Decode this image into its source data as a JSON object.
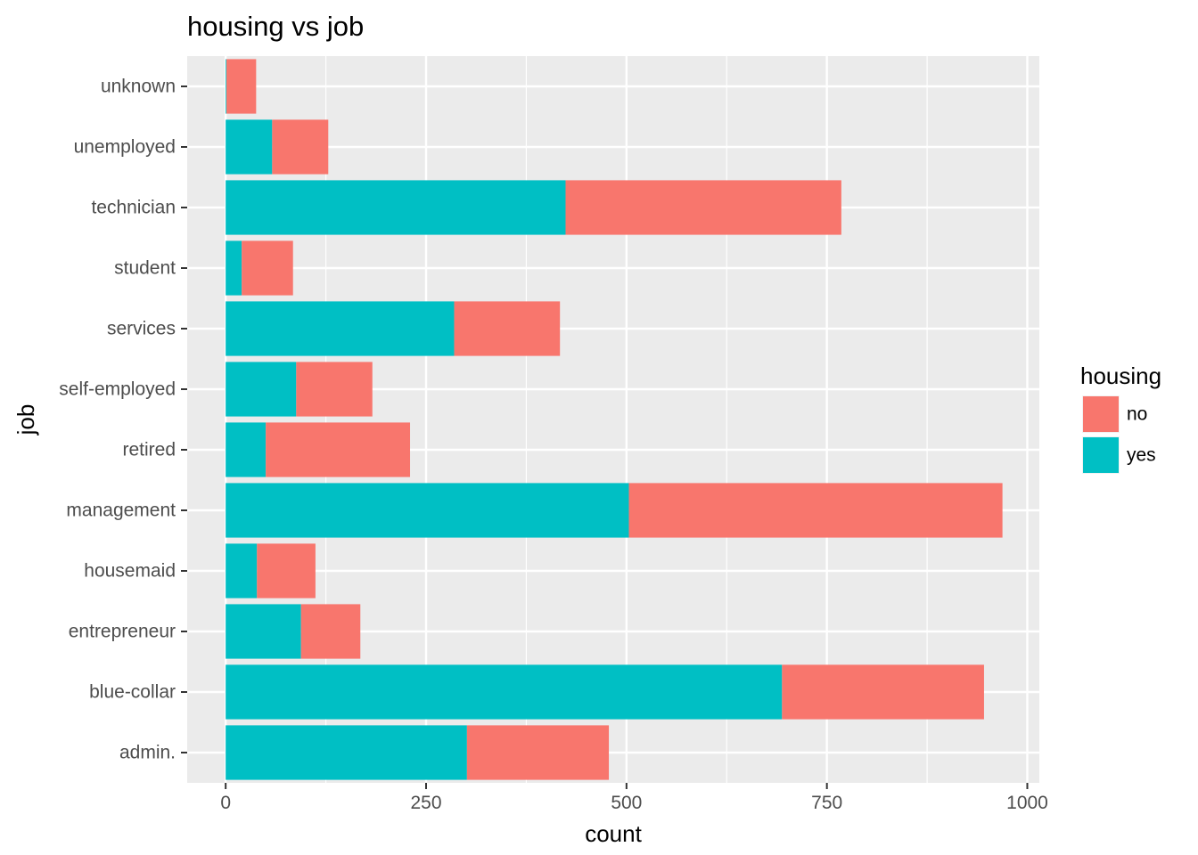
{
  "chart_data": {
    "type": "bar",
    "orientation": "horizontal",
    "stacked": true,
    "title": "housing vs job",
    "xlabel": "count",
    "ylabel": "job",
    "categories": [
      "admin.",
      "blue-collar",
      "entrepreneur",
      "housemaid",
      "management",
      "retired",
      "self-employed",
      "services",
      "student",
      "technician",
      "unemployed",
      "unknown"
    ],
    "series": [
      {
        "name": "yes",
        "color": "#00BFC4",
        "values": [
          301,
          694,
          94,
          39,
          503,
          50,
          88,
          285,
          20,
          424,
          58,
          1
        ]
      },
      {
        "name": "no",
        "color": "#F8766D",
        "values": [
          177,
          252,
          74,
          73,
          466,
          180,
          95,
          132,
          64,
          344,
          70,
          37
        ]
      }
    ],
    "xlim": [
      -48,
      1015
    ],
    "xticks": [
      0,
      250,
      500,
      750,
      1000
    ],
    "grid": true,
    "legend": {
      "title": "housing",
      "placement": "right",
      "entries": [
        {
          "label": "no",
          "color": "#F8766D"
        },
        {
          "label": "yes",
          "color": "#00BFC4"
        }
      ]
    },
    "panel_background": "#EBEBEB",
    "gridline_color": "#FFFFFF"
  }
}
